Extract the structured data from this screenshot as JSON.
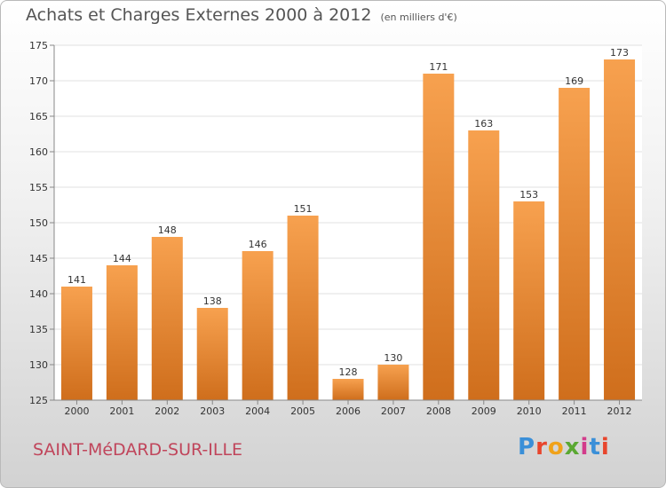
{
  "header": {
    "title": "Achats et Charges Externes 2000 à 2012",
    "subtitle": "(en milliers d'€)"
  },
  "commune": "SAINT-MéDARD-SUR-ILLE",
  "logo": {
    "text": "Proxiti",
    "letter_colors": [
      "#3a8fd8",
      "#e8452c",
      "#f0a21a",
      "#5aa832",
      "#d23c8b",
      "#3a8fd8",
      "#e8452c"
    ]
  },
  "colors": {
    "bar_top": "#f7a14f",
    "bar_bottom": "#cf6e1c",
    "axis": "#888888",
    "grid": "#e0e0e0"
  },
  "chart_data": {
    "type": "bar",
    "title": "Achats et Charges Externes 2000 à 2012",
    "subtitle": "(en milliers d'€)",
    "categories": [
      "2000",
      "2001",
      "2002",
      "2003",
      "2004",
      "2005",
      "2006",
      "2007",
      "2008",
      "2009",
      "2010",
      "2011",
      "2012"
    ],
    "values": [
      141,
      144,
      148,
      138,
      146,
      151,
      128,
      130,
      171,
      163,
      153,
      169,
      173
    ],
    "ylim": [
      125,
      175
    ],
    "yticks": [
      125,
      130,
      135,
      140,
      145,
      150,
      155,
      160,
      165,
      170,
      175
    ],
    "grid": true,
    "xlabel": "",
    "ylabel": ""
  }
}
